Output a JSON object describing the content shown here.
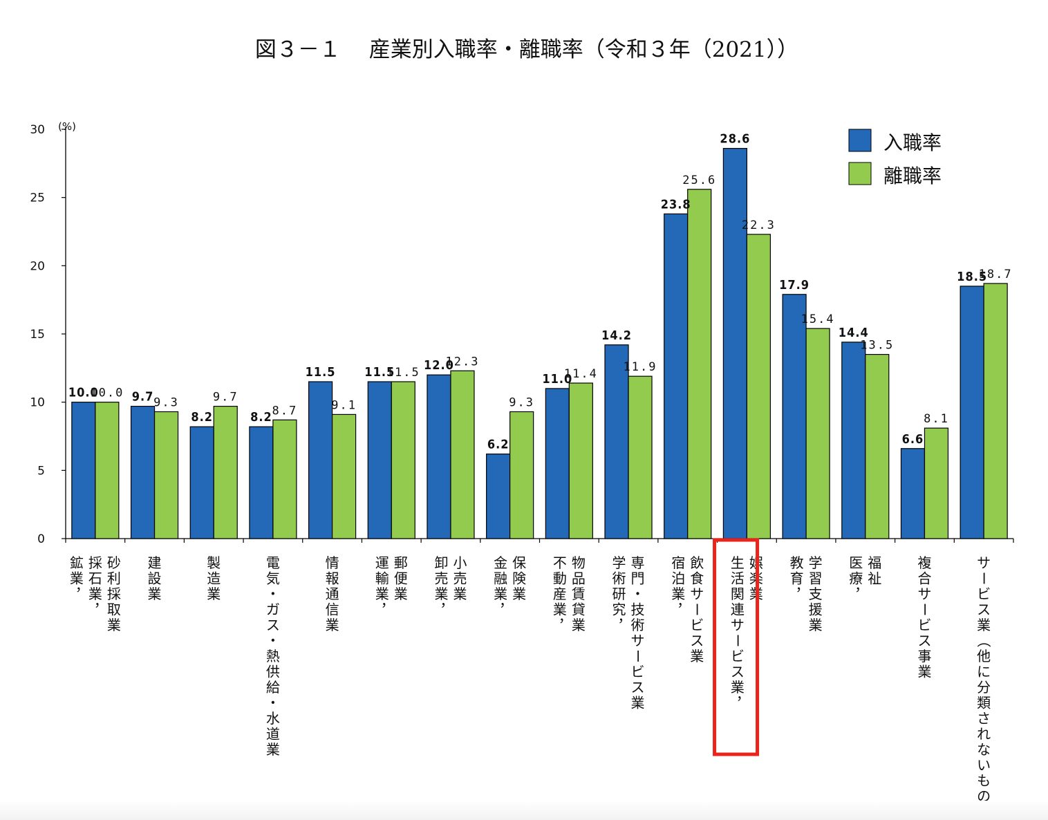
{
  "chart_data": {
    "type": "bar",
    "title": "図３－１　 産業別入職率・離職率（令和３年（2021））",
    "ylabel": "(%)",
    "ylim": [
      0,
      30
    ],
    "yticks": [
      0,
      5,
      10,
      15,
      20,
      25,
      30
    ],
    "grid": false,
    "legend_position": "top-right",
    "categories": [
      "鉱業，採石業，砂利採取業",
      "建設業",
      "製造業",
      "電気・ガス・熱供給・水道業",
      "情報通信業",
      "運輸業，郵便業",
      "卸売業，小売業",
      "金融業，保険業",
      "不動産業，物品賃貸業",
      "学術研究，専門・技術サービス業",
      "宿泊業，飲食サービス業",
      "生活関連サービス業，娯楽業",
      "教育，学習支援業",
      "医療，福祉",
      "複合サービス事業",
      "サービス業（他に分類されないもの）"
    ],
    "series": [
      {
        "name": "入職率",
        "color": "#2369b8",
        "values": [
          10.0,
          9.7,
          8.2,
          8.2,
          11.5,
          11.5,
          12.0,
          6.2,
          11.0,
          14.2,
          23.8,
          28.6,
          17.9,
          14.4,
          6.6,
          18.5
        ],
        "labels": [
          "10.0",
          "9.7",
          "8.2",
          "8.2",
          "11.5",
          "11.5",
          "12.0",
          "6.2",
          "11.0",
          "14.2",
          "23.8",
          "28.6",
          "17.9",
          "14.4",
          "6.6",
          "18.5"
        ]
      },
      {
        "name": "離職率",
        "color": "#92cb4e",
        "values": [
          10.0,
          9.3,
          9.7,
          8.7,
          9.1,
          11.5,
          12.3,
          9.3,
          11.4,
          11.9,
          25.6,
          22.3,
          15.4,
          13.5,
          8.1,
          18.7
        ],
        "labels": [
          "10.0",
          "9.3",
          "9.7",
          "8.7",
          "9.1",
          "11.5",
          "12.3",
          "9.3",
          "11.4",
          "11.9",
          "25.6",
          "22.3",
          "15.4",
          "13.5",
          "8.1",
          "18.7"
        ]
      }
    ],
    "highlight": {
      "category_index": 11,
      "color": "#e8241c"
    }
  }
}
